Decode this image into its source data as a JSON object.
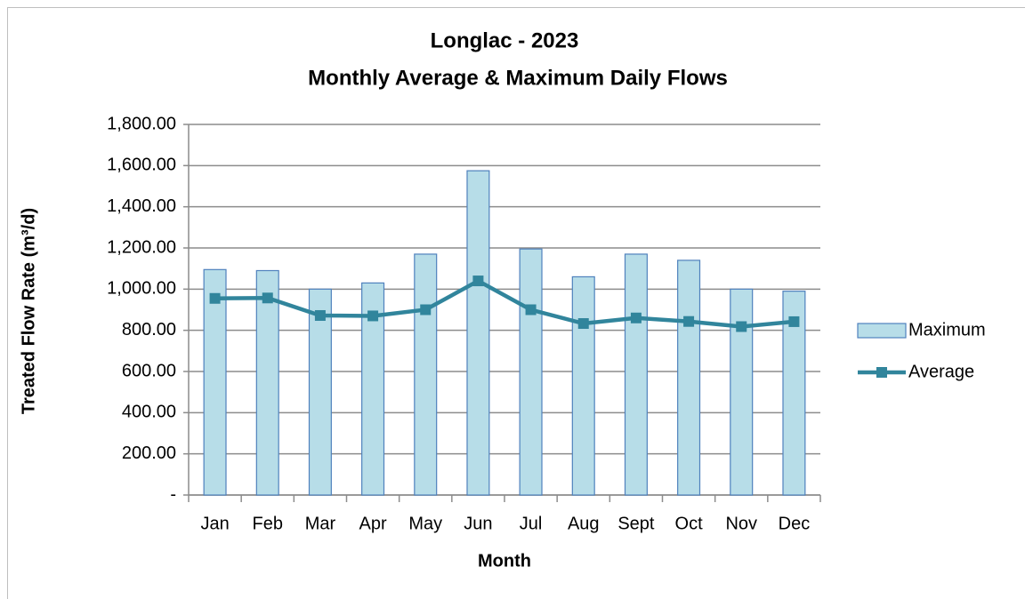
{
  "chart_data": {
    "type": "bar_line",
    "title": [
      "Longlac - 2023",
      "Monthly Average & Maximum Daily Flows"
    ],
    "x_label": "Month",
    "y_label": "Treated Flow Rate (m³/d)",
    "categories": [
      "Jan",
      "Feb",
      "Mar",
      "Apr",
      "May",
      "Jun",
      "Jul",
      "Aug",
      "Sept",
      "Oct",
      "Nov",
      "Dec"
    ],
    "series": [
      {
        "name": "Maximum",
        "kind": "bar",
        "color": "#b7dde8",
        "values": [
          1095,
          1090,
          1000,
          1030,
          1170,
          1575,
          1195,
          1060,
          1170,
          1140,
          1000,
          990
        ]
      },
      {
        "name": "Average",
        "kind": "line",
        "color": "#31859c",
        "values": [
          955,
          957,
          872,
          870,
          900,
          1040,
          900,
          833,
          860,
          843,
          818,
          842
        ]
      }
    ],
    "ylim": [
      0,
      1800
    ],
    "yticks": [
      {
        "value": 0,
        "label": "-"
      },
      {
        "value": 200,
        "label": "200.00"
      },
      {
        "value": 400,
        "label": "400.00"
      },
      {
        "value": 600,
        "label": "600.00"
      },
      {
        "value": 800,
        "label": "800.00"
      },
      {
        "value": 1000,
        "label": "1,000.00"
      },
      {
        "value": 1200,
        "label": "1,200.00"
      },
      {
        "value": 1400,
        "label": "1,400.00"
      },
      {
        "value": 1600,
        "label": "1,600.00"
      },
      {
        "value": 1800,
        "label": "1,800.00"
      }
    ],
    "grid": true,
    "legend": "right"
  }
}
